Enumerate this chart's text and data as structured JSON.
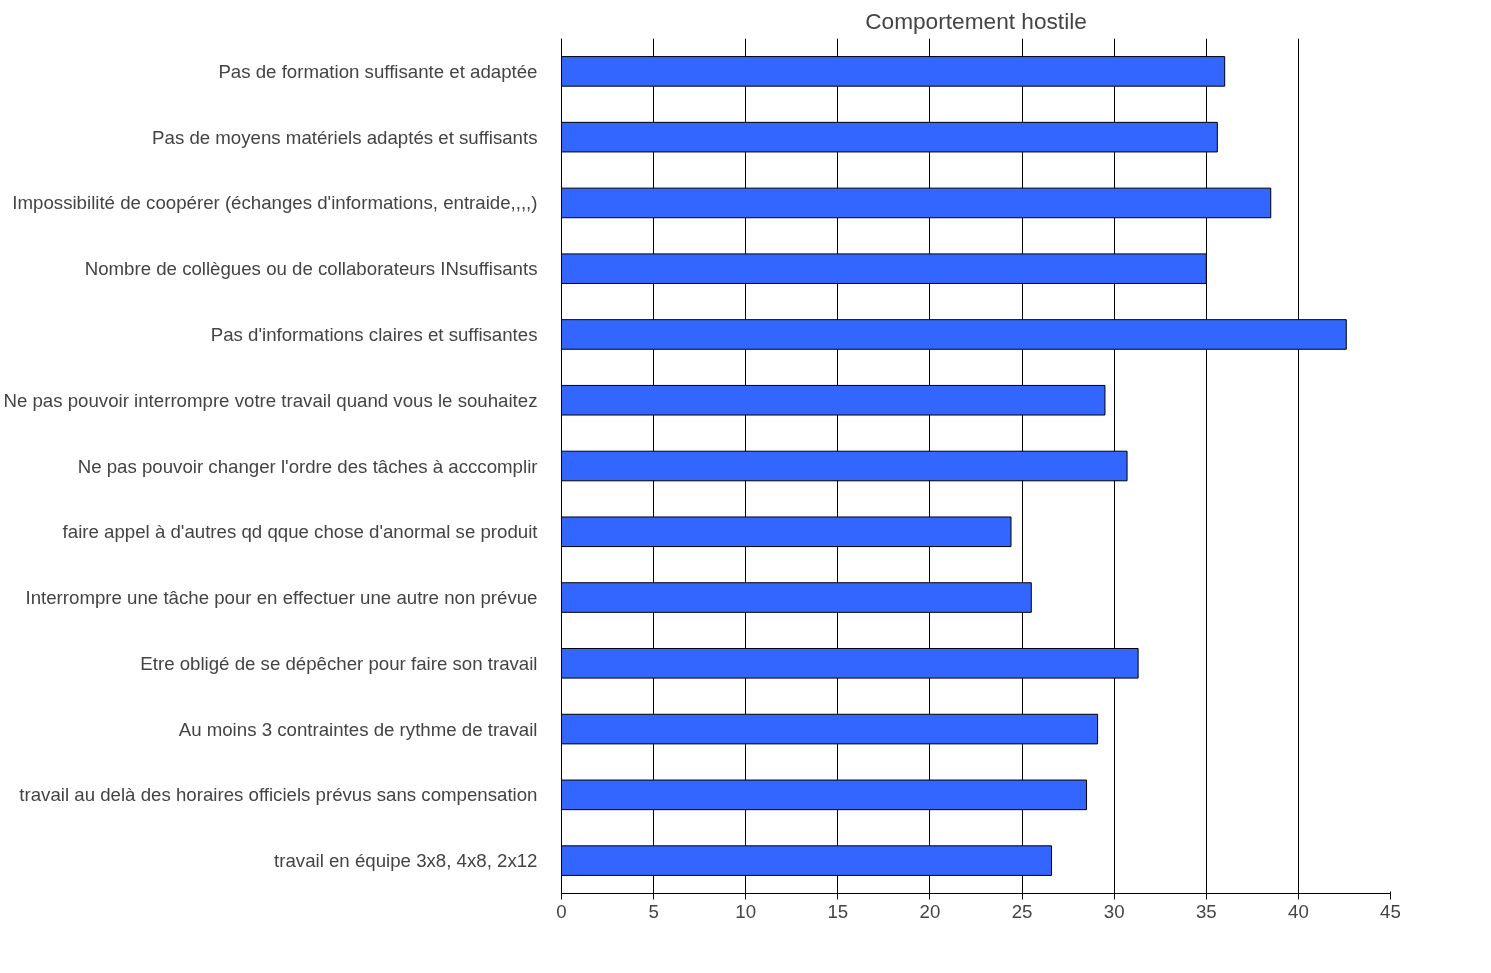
{
  "chart_data": {
    "type": "bar",
    "orientation": "horizontal",
    "title": "Comportement hostile",
    "categories": [
      "Pas de formation suffisante et adaptée",
      "Pas de moyens matériels adaptés et suffisants",
      "Impossibilité de coopérer (échanges d'informations, entraide,,,,)",
      "Nombre de collègues ou de collaborateurs INsuffisants",
      "Pas d'informations claires et suffisantes",
      "Ne pas pouvoir interrompre votre travail quand vous le souhaitez",
      "Ne pas pouvoir changer l'ordre des tâches à acccomplir",
      "faire appel à d'autres qd qque chose d'anormal se produit",
      "Interrompre une tâche pour en effectuer une autre non prévue",
      "Etre obligé de se dépêcher pour faire son travail",
      "Au moins 3 contraintes de rythme de travail",
      "travail au delà des horaires officiels prévus sans compensation",
      "travail en équipe 3x8, 4x8, 2x12"
    ],
    "values": [
      36.0,
      35.6,
      38.5,
      35.0,
      42.6,
      29.5,
      30.7,
      24.4,
      25.5,
      31.3,
      29.1,
      28.5,
      26.6
    ],
    "color": "#3366ff",
    "xlim": [
      0,
      45
    ],
    "xticks": [
      0,
      5,
      10,
      15,
      20,
      25,
      30,
      35,
      40,
      45
    ],
    "grid": "x"
  }
}
